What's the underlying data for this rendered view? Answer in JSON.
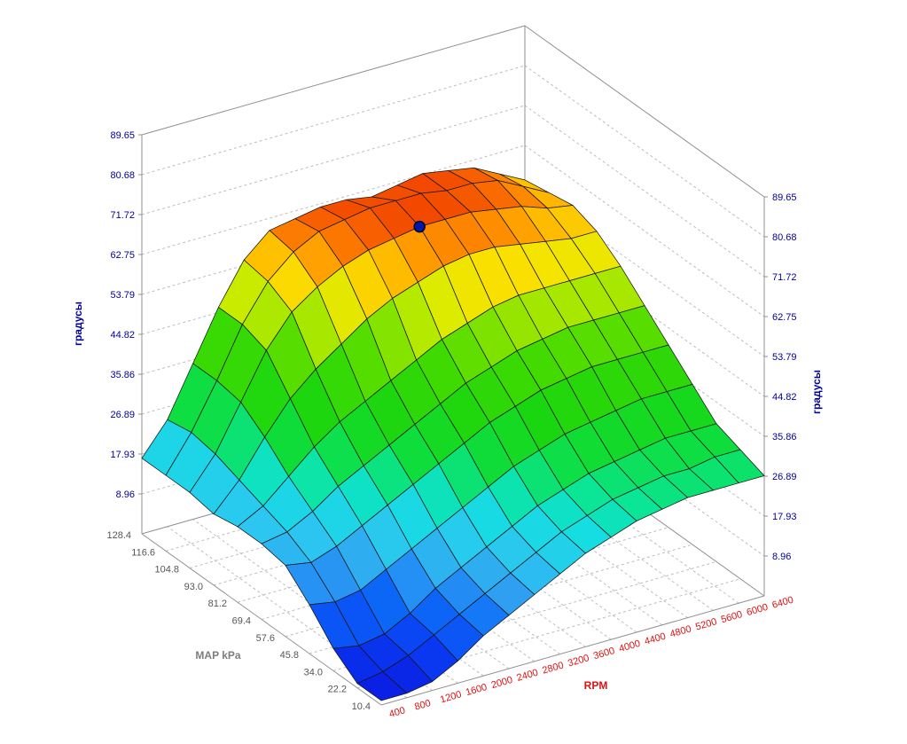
{
  "axes": {
    "z": {
      "title": "градусы",
      "ticks": [
        "8.96",
        "17.93",
        "26.89",
        "35.86",
        "44.82",
        "53.79",
        "62.75",
        "71.72",
        "80.68",
        "89.65"
      ],
      "color": "#00009b"
    },
    "map": {
      "title": "MAP kPa",
      "ticks": [
        "10.4",
        "22.2",
        "34.0",
        "45.8",
        "57.6",
        "69.4",
        "81.2",
        "93.0",
        "104.8",
        "116.6",
        "128.4"
      ],
      "tick_color": "#565656",
      "title_color": "#7d7d7d"
    },
    "rpm": {
      "title": "RPM",
      "ticks": [
        "400",
        "800",
        "1200",
        "1600",
        "2000",
        "2400",
        "2800",
        "3200",
        "3600",
        "4000",
        "4400",
        "4800",
        "5200",
        "5600",
        "6000",
        "6400"
      ],
      "color": "#e01111"
    }
  },
  "chart_data": {
    "type": "surface",
    "title": "",
    "xlabel": "RPM",
    "ylabel": "MAP kPa",
    "zlabel": "градусы",
    "x": [
      400,
      800,
      1200,
      1600,
      2000,
      2400,
      2800,
      3200,
      3600,
      4000,
      4400,
      4800,
      5200,
      5600,
      6000,
      6400
    ],
    "y": [
      10.4,
      22.2,
      34.0,
      45.8,
      57.6,
      69.4,
      81.2,
      93.0,
      104.8,
      116.6,
      128.4
    ],
    "zlim": [
      0,
      89.65
    ],
    "z_tick_step": 8.965,
    "grid": true,
    "values": [
      [
        1,
        1,
        2,
        5,
        9,
        12,
        15,
        18,
        21,
        23,
        25,
        26,
        27,
        27,
        27,
        27
      ],
      [
        1,
        2,
        4,
        7,
        10,
        13,
        16,
        19,
        22,
        24,
        26,
        27,
        28,
        28,
        29,
        29
      ],
      [
        5,
        4,
        5,
        8,
        12,
        15,
        18,
        21,
        24,
        26,
        28,
        29,
        30,
        31,
        31,
        31
      ],
      [
        11,
        10,
        11,
        14,
        17,
        20,
        23,
        26,
        29,
        31,
        33,
        34,
        35,
        36,
        36,
        36
      ],
      [
        16,
        15,
        17,
        20,
        23,
        26,
        29,
        32,
        35,
        37,
        39,
        40,
        41,
        41,
        41,
        41
      ],
      [
        17,
        18,
        21,
        25,
        28,
        31,
        34,
        37,
        40,
        42,
        44,
        45,
        46,
        46,
        46,
        46
      ],
      [
        17,
        20,
        25,
        30,
        34,
        37,
        40,
        43,
        46,
        48,
        50,
        51,
        51,
        51,
        51,
        51
      ],
      [
        16,
        22,
        30,
        37,
        42,
        46,
        50,
        53,
        55,
        57,
        58,
        58,
        57,
        56,
        55,
        55
      ],
      [
        17,
        24,
        34,
        44,
        51,
        55,
        58,
        60,
        61,
        62,
        62,
        62,
        61,
        60,
        58,
        57
      ],
      [
        17,
        25,
        35,
        46,
        54,
        59,
        62,
        63,
        64,
        64,
        64,
        63,
        63,
        62,
        59,
        56
      ],
      [
        17,
        24,
        35,
        46,
        55,
        60,
        61,
        62,
        62,
        61,
        62,
        63,
        62,
        61,
        58,
        55
      ]
    ],
    "marker": {
      "x_index": 9,
      "y_index": 8,
      "rpm": 4000,
      "map": 104.8,
      "color": "#0018a8"
    },
    "colormap": [
      [
        0,
        "#0a16e0"
      ],
      [
        5,
        "#0a3cf2"
      ],
      [
        10,
        "#0c6cf8"
      ],
      [
        14,
        "#2f9ff2"
      ],
      [
        18,
        "#2cc6f0"
      ],
      [
        23,
        "#12dfdf"
      ],
      [
        26,
        "#0ae596"
      ],
      [
        30,
        "#0edd3c"
      ],
      [
        35,
        "#1ad610"
      ],
      [
        42,
        "#42da00"
      ],
      [
        47,
        "#8ce400"
      ],
      [
        51,
        "#d6ec00"
      ],
      [
        54,
        "#f8e300"
      ],
      [
        57,
        "#ffc000"
      ],
      [
        59,
        "#ff9600"
      ],
      [
        61.5,
        "#f96a00"
      ],
      [
        63.5,
        "#ef3d00"
      ],
      [
        66,
        "#e32000"
      ]
    ]
  },
  "styles": {
    "background": "#ffffff",
    "axis_line": "#909090",
    "grid_dash": "#bdbdbd",
    "mesh_stroke": "#161616"
  }
}
